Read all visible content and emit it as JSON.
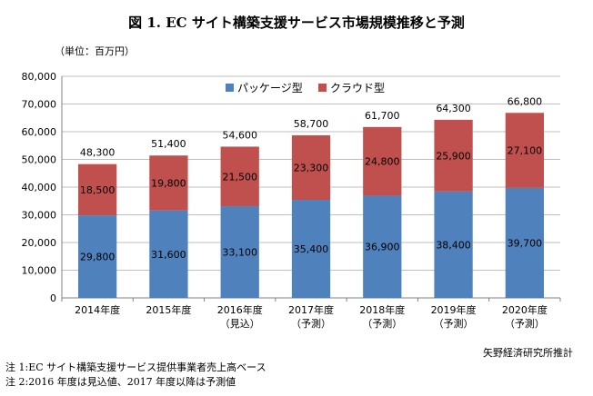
{
  "title": "図 1. EC サイト構築支援サービス市場規模推移と予測",
  "unit_label": "（単位：百万円）",
  "source_label": "矢野経済研究所推計",
  "notes": [
    "注 1:EC サイト構築支援サービス提供事業者売上高ベース",
    "注 2:2016 年度は見込値、2017 年度以降は予測値"
  ],
  "chart_data": {
    "type": "bar",
    "stacked": true,
    "categories": [
      "2014年度",
      "2015年度",
      "2016年度",
      "2017年度",
      "2018年度",
      "2019年度",
      "2020年度"
    ],
    "category_sublabels": [
      "",
      "",
      "（見込）",
      "（予測）",
      "（予測）",
      "（予測）",
      "（予測）"
    ],
    "series": [
      {
        "name": "パッケージ型",
        "color": "#4f81bd",
        "values": [
          29800,
          31600,
          33100,
          35400,
          36900,
          38400,
          39700
        ]
      },
      {
        "name": "クラウド型",
        "color": "#c0504d",
        "values": [
          18500,
          19800,
          21500,
          23300,
          24800,
          25900,
          27100
        ]
      }
    ],
    "totals": [
      48300,
      51400,
      54600,
      58700,
      61700,
      64300,
      66800
    ],
    "ylim": [
      0,
      80000
    ],
    "yticks": [
      0,
      10000,
      20000,
      30000,
      40000,
      50000,
      60000,
      70000,
      80000
    ],
    "ytick_labels": [
      "0",
      "10,000",
      "20,000",
      "30,000",
      "40,000",
      "50,000",
      "60,000",
      "70,000",
      "80,000"
    ],
    "value_labels": {
      "series0": [
        "29,800",
        "31,600",
        "33,100",
        "35,400",
        "36,900",
        "38,400",
        "39,700"
      ],
      "series1": [
        "18,500",
        "19,800",
        "21,500",
        "23,300",
        "24,800",
        "25,900",
        "27,100"
      ],
      "totals": [
        "48,300",
        "51,400",
        "54,600",
        "58,700",
        "61,700",
        "64,300",
        "66,800"
      ]
    },
    "grid": true,
    "legend": "top"
  }
}
